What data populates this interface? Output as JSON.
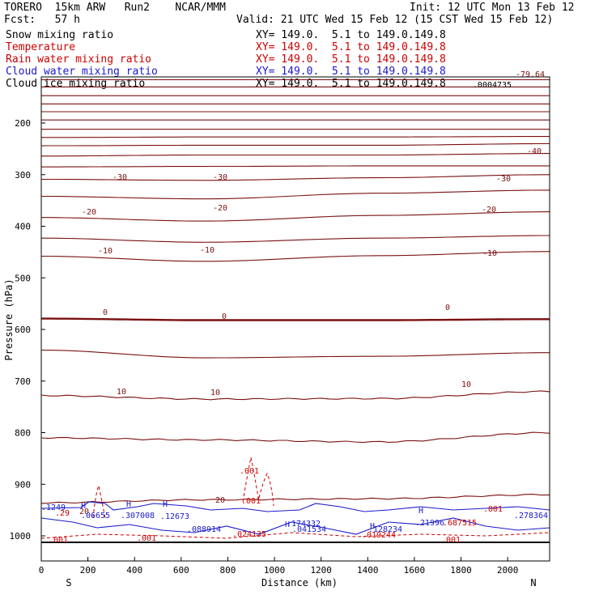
{
  "header": {
    "model": "TORERO  15km ARW   Run2    NCAR/MMM",
    "init": "Init: 12 UTC Mon 13 Feb 12",
    "fcst": "Fcst:   57 h",
    "valid": "Valid: 21 UTC Wed 15 Feb 12 (15 CST Wed 15 Feb 12)"
  },
  "fields": [
    {
      "name": "Snow mixing ratio",
      "xy": "XY= 149.0.  5.1 to 149.0.149.8",
      "color": "#000000"
    },
    {
      "name": "Temperature",
      "xy": "XY= 149.0.  5.1 to 149.0.149.8",
      "color": "#cc0000"
    },
    {
      "name": "Rain water mixing ratio",
      "xy": "XY= 149.0.  5.1 to 149.0.149.8",
      "color": "#cc0000"
    },
    {
      "name": "Cloud water mixing ratio",
      "xy": "XY= 149.0.  5.1 to 149.0.149.8",
      "color": "#1a1acc"
    },
    {
      "name": "Cloud ice mixing ratio",
      "xy": "XY= 149.0.  5.1 to 149.0.149.8",
      "color": "#000000"
    }
  ],
  "chart_data": {
    "type": "line",
    "xlabel": "Distance (km)",
    "ylabel": "Pressure (hPa)",
    "xlim": [
      0,
      2180
    ],
    "ylim": [
      100,
      1010
    ],
    "x_ticks": [
      "0",
      "200",
      "400",
      "600",
      "800",
      "1000",
      "1200",
      "1400",
      "1600",
      "1800",
      "2000"
    ],
    "y_ticks": [
      "200",
      "300",
      "400",
      "500",
      "600",
      "700",
      "800",
      "900",
      "1000"
    ],
    "endpoints": {
      "left": "S",
      "right": "N"
    },
    "temperature_contours": {
      "color": "#7a1010",
      "freezing_level_label": "0",
      "isotherms": [
        {
          "level": -80,
          "p": [
            116,
            116,
            116,
            116
          ]
        },
        {
          "level": -75,
          "p": [
            130,
            130,
            130,
            130
          ]
        },
        {
          "level": -70,
          "p": [
            147,
            147,
            147,
            147
          ]
        },
        {
          "level": -65,
          "p": [
            163,
            163,
            163,
            163
          ]
        },
        {
          "level": -60,
          "p": [
            178,
            178,
            178,
            178
          ]
        },
        {
          "level": -55,
          "p": [
            194,
            194,
            194,
            194
          ]
        },
        {
          "level": -50,
          "p": [
            212,
            212,
            212,
            212
          ]
        },
        {
          "level": -45,
          "p": [
            228,
            227,
            227,
            226
          ]
        },
        {
          "level": -40,
          "p": [
            244,
            243,
            243,
            240
          ]
        },
        {
          "level": -35,
          "p": [
            264,
            262,
            262,
            259
          ]
        },
        {
          "level": -30,
          "p": [
            285,
            284,
            283,
            283
          ]
        },
        {
          "level": -25,
          "p": [
            309,
            311,
            306,
            300
          ]
        },
        {
          "level": -20,
          "p": [
            342,
            347,
            336,
            330
          ]
        },
        {
          "level": -15,
          "p": [
            383,
            390,
            379,
            372
          ]
        },
        {
          "level": -10,
          "p": [
            423,
            431,
            423,
            418
          ]
        },
        {
          "level": -5,
          "p": [
            458,
            468,
            457,
            449
          ]
        },
        {
          "level": 0,
          "p": [
            579,
            582,
            582,
            580
          ]
        },
        {
          "level": 5,
          "p": [
            640,
            655,
            652,
            645
          ]
        },
        {
          "level": 10,
          "p": [
            728,
            735,
            734,
            720
          ]
        },
        {
          "level": 15,
          "p": [
            810,
            814,
            818,
            800
          ]
        },
        {
          "level": 20,
          "p": [
            936,
            930,
            928,
            920
          ]
        }
      ],
      "labels": [
        "-30",
        "-30",
        "-30",
        "-20",
        "-20",
        "-20",
        "-10",
        "-10",
        "-10",
        "0",
        "0",
        "0",
        "10",
        "10",
        "10",
        "20",
        "20",
        "-40",
        "-79.64"
      ]
    },
    "cloud_annotations": [
      "H",
      "H",
      "H",
      "H",
      "H",
      "H",
      ".001",
      ".001",
      ".001",
      ".001",
      ".001",
      ".001",
      ".0004735"
    ],
    "low_level_labels": [
      ".1249",
      ".29",
      ".06655",
      ".307008",
      ".12673",
      ".088914",
      ".024135",
      ".174332",
      ".041534",
      ".128234",
      ".019244",
      ".21996",
      ".687515",
      ".278364"
    ]
  }
}
